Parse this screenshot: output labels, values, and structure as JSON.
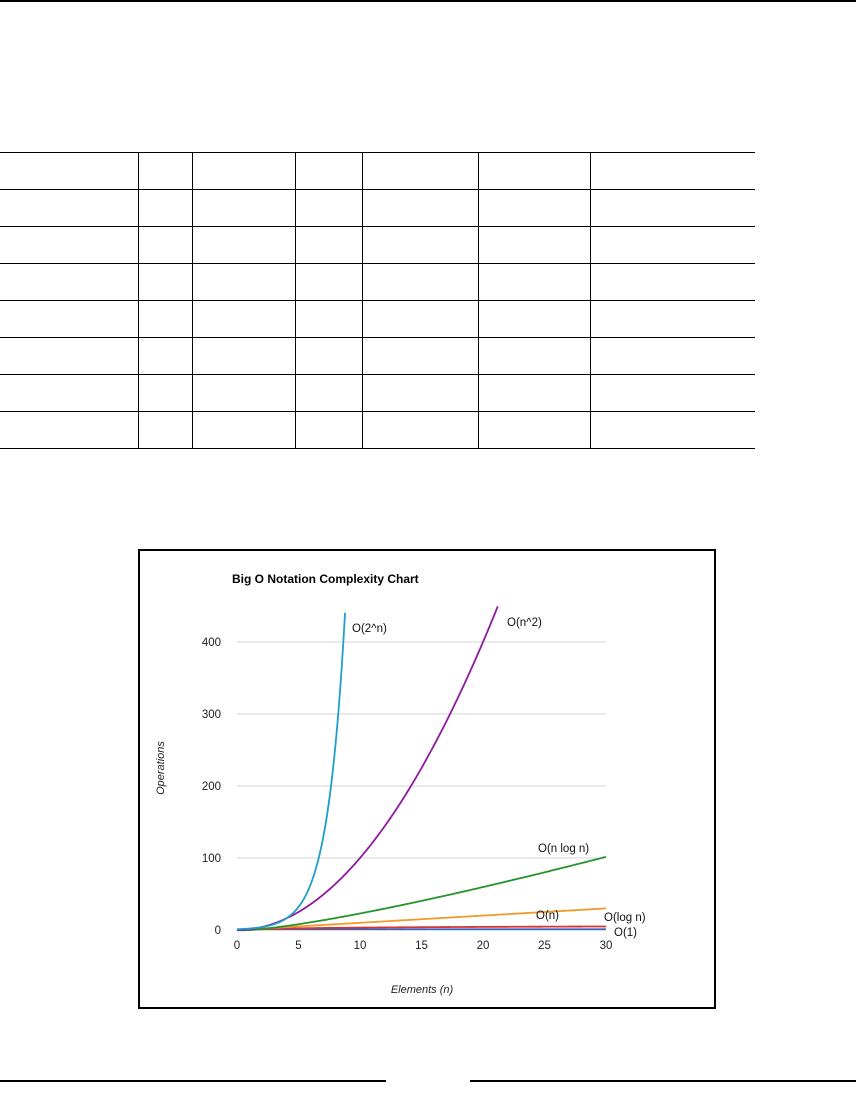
{
  "table": {
    "rows": 8,
    "columns": 7,
    "cells": []
  },
  "chart_data": {
    "type": "line",
    "title": "Big O Notation Complexity Chart",
    "xlabel": "Elements (n)",
    "ylabel": "Operations",
    "xlim": [
      0,
      30
    ],
    "ylim": [
      0,
      450
    ],
    "x_ticks": [
      "0",
      "5",
      "10",
      "15",
      "20",
      "25",
      "30"
    ],
    "y_ticks": [
      "0",
      "100",
      "200",
      "300",
      "400"
    ],
    "grid": "horizontal",
    "legend": "none",
    "series": [
      {
        "name": "O(2^n)",
        "color": "#1f9ec9",
        "x": [
          0,
          1,
          2,
          3,
          4,
          5,
          6,
          7,
          8,
          8.81
        ],
        "y": [
          1,
          2,
          4,
          8,
          16,
          32,
          64,
          128,
          256,
          450
        ]
      },
      {
        "name": "O(n^2)",
        "color": "#8e1aa0",
        "x": [
          0,
          2,
          4,
          6,
          8,
          10,
          12,
          14,
          16,
          18,
          20,
          21.2
        ],
        "y": [
          0,
          4,
          16,
          36,
          64,
          100,
          144,
          196,
          256,
          324,
          400,
          450
        ]
      },
      {
        "name": "O(n log n)",
        "color": "#27932a",
        "x": [
          1,
          3,
          5,
          10,
          15,
          20,
          25,
          30
        ],
        "y": [
          0,
          4.75,
          11.6,
          33.2,
          58.6,
          86.4,
          116.1,
          102
        ]
      },
      {
        "name": "O(n)",
        "color": "#f39a2b",
        "x": [
          0,
          10,
          20,
          30
        ],
        "y": [
          0,
          10,
          20,
          30
        ]
      },
      {
        "name": "O(log n)",
        "color": "#d6362f",
        "x": [
          1,
          5,
          10,
          20,
          30
        ],
        "y": [
          0,
          2.3,
          3.3,
          4.3,
          4.9
        ]
      },
      {
        "name": "O(1)",
        "color": "#3b5fbf",
        "x": [
          0,
          30
        ],
        "y": [
          1,
          1
        ]
      }
    ]
  }
}
